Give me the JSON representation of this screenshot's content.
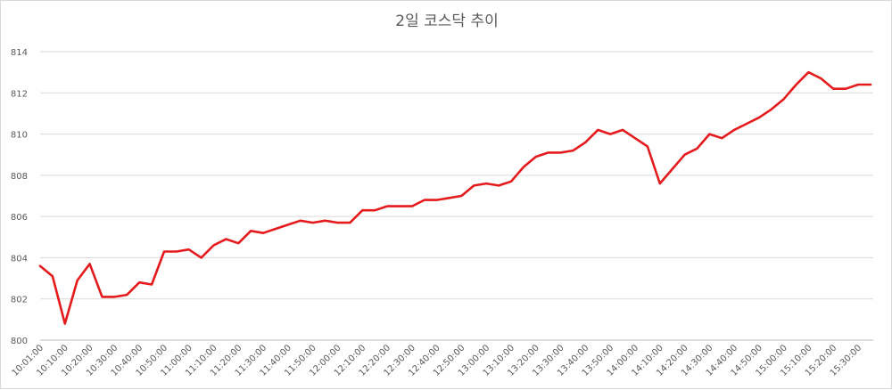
{
  "chart_data": {
    "type": "line",
    "title": "2일 코스닥 추이",
    "xlabel": "",
    "ylabel": "",
    "ylim": [
      800,
      814
    ],
    "yticks": [
      800,
      802,
      804,
      806,
      808,
      810,
      812,
      814
    ],
    "grid": true,
    "legend": "none",
    "line_color": "#e41a1c",
    "xtick_labels": [
      "10:01:00",
      "10:10:00",
      "10:20:00",
      "10:30:00",
      "10:40:00",
      "10:50:00",
      "11:00:00",
      "11:10:00",
      "11:20:00",
      "11:30:00",
      "11:40:00",
      "11:50:00",
      "12:00:00",
      "12:10:00",
      "12:20:00",
      "12:30:00",
      "12:40:00",
      "12:50:00",
      "13:00:00",
      "13:10:00",
      "13:20:00",
      "13:30:00",
      "13:40:00",
      "13:50:00",
      "14:00:00",
      "14:10:00",
      "14:20:00",
      "14:30:00",
      "14:40:00",
      "14:50:00",
      "15:00:00",
      "15:10:00",
      "15:20:00",
      "15:30:00"
    ],
    "series": [
      {
        "values": [
          803.6,
          803.1,
          800.8,
          802.9,
          803.7,
          802.1,
          802.1,
          802.2,
          802.8,
          802.7,
          804.3,
          804.3,
          804.4,
          804.0,
          804.6,
          804.9,
          804.7,
          805.3,
          805.2,
          805.4,
          805.6,
          805.8,
          805.7,
          805.8,
          805.7,
          805.7,
          806.3,
          806.3,
          806.5,
          806.5,
          806.5,
          806.8,
          806.8,
          806.9,
          807.0,
          807.5,
          807.6,
          807.5,
          807.7,
          808.4,
          808.9,
          809.1,
          809.1,
          809.2,
          809.6,
          810.2,
          810.0,
          810.2,
          809.8,
          809.4,
          807.6,
          808.3,
          809.0,
          809.3,
          810.0,
          809.8,
          810.2,
          810.5,
          810.8,
          811.2,
          811.7,
          812.4,
          813.0,
          812.7,
          812.2,
          812.2,
          812.4,
          812.4
        ]
      }
    ]
  }
}
